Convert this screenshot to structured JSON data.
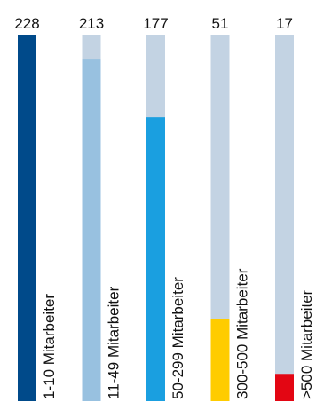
{
  "chart_data": {
    "type": "bar",
    "orientation": "vertical",
    "max_value": 228,
    "track_color": "#c3d3e3",
    "value_labels_position": "top",
    "category_labels_orientation": "rotated-vertical-beside-bar",
    "bars": [
      {
        "category": "1-10 Mitarbeiter",
        "value": 228,
        "fill_color": "#004a8a"
      },
      {
        "category": "11-49 Mitarbeiter",
        "value": 213,
        "fill_color": "#98c1e0"
      },
      {
        "category": "50-299 Mitarbeiter",
        "value": 177,
        "fill_color": "#1a9fe0"
      },
      {
        "category": "300-500 Mitarbeiter",
        "value": 51,
        "fill_color": "#ffcc00"
      },
      {
        "category": ">500 Mitarbeiter",
        "value": 17,
        "fill_color": "#e30613"
      }
    ]
  }
}
